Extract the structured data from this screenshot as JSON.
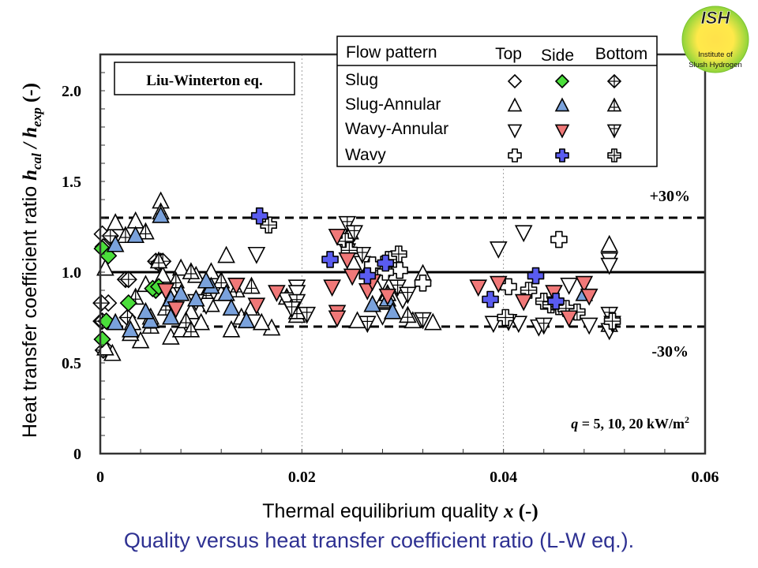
{
  "caption": "Quality versus heat transfer coefficient ratio (L-W eq.).",
  "logo": {
    "title": "ISH",
    "line1": "Institute of",
    "line2": "Slush Hydrogen",
    "colors": {
      "outer": "#8fd43a",
      "inner": "#ffe14a",
      "title": "#1a1a1a"
    }
  },
  "colors": {
    "caption": "#2e3192",
    "slug_side": "#4ade3a",
    "slug_annular_side": "#7aa2dc",
    "wavy_annular_side": "#f07878",
    "wavy_side": "#5a5cf0",
    "open": "#ffffff",
    "stroke": "#000000"
  },
  "chart_data": {
    "type": "scatter",
    "title": "Liu-Winterton eq.",
    "xlabel": "Thermal equilibrium quality x (-)",
    "xlabel_main": "Thermal equilibrium quality ",
    "xlabel_var": "x",
    "xlabel_unit": " (-)",
    "ylabel_main": "Heat transfer coefficient ratio ",
    "ylabel_var": "h",
    "ylabel_sub1": "cal",
    "ylabel_sep": " / ",
    "ylabel_sub2": "exp",
    "ylabel_unit": " (-)",
    "xlim": [
      0,
      0.06
    ],
    "ylim": [
      0,
      2.2
    ],
    "x_ticks": [
      {
        "v": 0,
        "label": "0"
      },
      {
        "v": 0.02,
        "label": "0.02"
      },
      {
        "v": 0.04,
        "label": "0.04"
      },
      {
        "v": 0.06,
        "label": "0.06"
      }
    ],
    "y_ticks": [
      {
        "v": 0,
        "label": "0"
      },
      {
        "v": 0.5,
        "label": "0.5"
      },
      {
        "v": 1.0,
        "label": "1.0"
      },
      {
        "v": 1.5,
        "label": "1.5"
      },
      {
        "v": 2.0,
        "label": "2.0"
      }
    ],
    "x_minor_step": 0.004,
    "y_minor_step": 0.1,
    "grid": "vertical dotted at 0.02 and 0.04",
    "reference_lines": [
      {
        "y": 1.0,
        "style": "solid"
      },
      {
        "y": 1.3,
        "style": "dashed",
        "label": "+30%"
      },
      {
        "y": 0.7,
        "style": "dashed",
        "label": "-30%"
      }
    ],
    "annotation": {
      "var": "q",
      "text": " = 5, 10, 20 kW/m",
      "sup": "2"
    },
    "legend": {
      "placement": "top-right",
      "header": "Flow pattern",
      "columns": [
        "Top",
        "Side",
        "Bottom"
      ],
      "rows": [
        "Slug",
        "Slug-Annular",
        "Wavy-Annular",
        "Wavy"
      ]
    },
    "series": [
      {
        "name": "Slug - Top",
        "marker": "diamond",
        "fill": "open",
        "points": [
          [
            0.0002,
            1.21
          ],
          [
            0.0005,
            0.58
          ],
          [
            0.0001,
            0.73
          ],
          [
            0.0008,
            0.83
          ],
          [
            0.0003,
            1.14
          ]
        ]
      },
      {
        "name": "Slug - Side",
        "marker": "diamond",
        "fill": "slug_side",
        "points": [
          [
            0.0002,
            1.13
          ],
          [
            0.0008,
            1.09
          ],
          [
            0.0002,
            0.63
          ],
          [
            0.0006,
            0.73
          ],
          [
            0.0028,
            0.83
          ],
          [
            0.0055,
            0.9
          ],
          [
            0.0052,
            0.91
          ],
          [
            0.0058,
            0.92
          ]
        ]
      },
      {
        "name": "Slug - Bottom",
        "marker": "diamond",
        "fill": "cross",
        "points": [
          [
            0.0001,
            0.83
          ],
          [
            0.0002,
            0.73
          ],
          [
            0.0003,
            0.57
          ],
          [
            0.0025,
            0.96
          ],
          [
            0.0028,
            0.96
          ],
          [
            0.0055,
            1.06
          ],
          [
            0.0058,
            1.05
          ],
          [
            0.006,
            1.06
          ],
          [
            0.0062,
            1.06
          ],
          [
            0.0027,
            0.75
          ],
          [
            0.001,
            1.2
          ]
        ]
      },
      {
        "name": "Slug-Annular - Top",
        "marker": "triangle-up",
        "fill": "open",
        "points": [
          [
            0.0005,
            1.02
          ],
          [
            0.0015,
            1.27
          ],
          [
            0.0035,
            1.28
          ],
          [
            0.006,
            1.39
          ],
          [
            0.0012,
            0.55
          ],
          [
            0.004,
            0.62
          ],
          [
            0.007,
            0.64
          ],
          [
            0.008,
            0.68
          ],
          [
            0.01,
            0.72
          ],
          [
            0.013,
            0.68
          ],
          [
            0.0125,
            1.09
          ],
          [
            0.017,
            0.69
          ],
          [
            0.0005,
            0.58
          ],
          [
            0.003,
            0.66
          ],
          [
            0.005,
            0.75
          ],
          [
            0.009,
            0.78
          ],
          [
            0.011,
            0.82
          ],
          [
            0.014,
            0.75
          ],
          [
            0.016,
            0.72
          ],
          [
            0.0195,
            0.76
          ],
          [
            0.008,
            1.02
          ],
          [
            0.0095,
            0.98
          ],
          [
            0.011,
            1.0
          ],
          [
            0.0062,
            0.98
          ],
          [
            0.0032,
            0.72
          ],
          [
            0.0045,
            0.93
          ],
          [
            0.0072,
            0.88
          ],
          [
            0.012,
            0.88
          ],
          [
            0.015,
            0.8
          ],
          [
            0.0248,
            1.22
          ],
          [
            0.032,
            0.99
          ],
          [
            0.028,
            0.84
          ],
          [
            0.0255,
            0.73
          ],
          [
            0.031,
            0.73
          ],
          [
            0.033,
            0.72
          ],
          [
            0.0505,
            1.15
          ]
        ]
      },
      {
        "name": "Slug-Annular - Side",
        "marker": "triangle-up",
        "fill": "slug_annular_side",
        "points": [
          [
            0.0035,
            1.2
          ],
          [
            0.006,
            1.31
          ],
          [
            0.0015,
            1.15
          ],
          [
            0.003,
            0.68
          ],
          [
            0.005,
            0.73
          ],
          [
            0.007,
            0.85
          ],
          [
            0.008,
            0.88
          ],
          [
            0.0095,
            0.85
          ],
          [
            0.011,
            0.92
          ],
          [
            0.0125,
            0.88
          ],
          [
            0.0045,
            0.78
          ],
          [
            0.007,
            0.75
          ],
          [
            0.0145,
            0.73
          ],
          [
            0.013,
            0.8
          ],
          [
            0.0105,
            0.95
          ],
          [
            0.027,
            0.82
          ],
          [
            0.0285,
            0.85
          ],
          [
            0.029,
            0.78
          ],
          [
            0.048,
            0.88
          ],
          [
            0.0015,
            0.72
          ]
        ]
      },
      {
        "name": "Slug-Annular - Bottom",
        "marker": "triangle-up",
        "fill": "cross",
        "points": [
          [
            0.0025,
            1.2
          ],
          [
            0.0045,
            1.22
          ],
          [
            0.006,
            1.33
          ],
          [
            0.0058,
            1.06
          ],
          [
            0.009,
            1.0
          ],
          [
            0.012,
            0.95
          ],
          [
            0.0075,
            0.95
          ],
          [
            0.0035,
            0.86
          ],
          [
            0.0065,
            0.8
          ],
          [
            0.0085,
            0.73
          ],
          [
            0.0105,
            0.88
          ],
          [
            0.0135,
            0.9
          ],
          [
            0.0195,
            0.78
          ],
          [
            0.0185,
            0.86
          ],
          [
            0.009,
            0.68
          ],
          [
            0.005,
            0.7
          ],
          [
            0.015,
            0.92
          ],
          [
            0.0305,
            0.76
          ],
          [
            0.0285,
            0.88
          ],
          [
            0.0505,
            0.71
          ]
        ]
      },
      {
        "name": "Wavy-Annular - Top",
        "marker": "triangle-down",
        "fill": "open",
        "points": [
          [
            0.0155,
            1.1
          ],
          [
            0.0185,
            0.85
          ],
          [
            0.0195,
            0.92
          ],
          [
            0.0245,
            1.12
          ],
          [
            0.026,
            1.05
          ],
          [
            0.028,
            0.95
          ],
          [
            0.03,
            0.85
          ],
          [
            0.0395,
            1.13
          ],
          [
            0.042,
            1.22
          ],
          [
            0.0465,
            0.93
          ],
          [
            0.0505,
            1.07
          ],
          [
            0.0505,
            1.04
          ],
          [
            0.039,
            0.72
          ],
          [
            0.0415,
            0.72
          ],
          [
            0.0435,
            0.7
          ],
          [
            0.0485,
            0.71
          ],
          [
            0.0505,
            0.68
          ],
          [
            0.0105,
            0.82
          ],
          [
            0.0095,
            0.84
          ],
          [
            0.028,
            0.76
          ],
          [
            0.0195,
            0.89
          ]
        ]
      },
      {
        "name": "Wavy-Annular - Side",
        "marker": "triangle-down",
        "fill": "wavy_annular_side",
        "points": [
          [
            0.0075,
            0.8
          ],
          [
            0.0135,
            0.93
          ],
          [
            0.0175,
            0.89
          ],
          [
            0.0155,
            0.82
          ],
          [
            0.0235,
            1.2
          ],
          [
            0.0245,
            1.07
          ],
          [
            0.023,
            0.92
          ],
          [
            0.0235,
            0.78
          ],
          [
            0.025,
            0.98
          ],
          [
            0.0265,
            0.9
          ],
          [
            0.0285,
            0.87
          ],
          [
            0.027,
            0.95
          ],
          [
            0.0235,
            0.75
          ],
          [
            0.0375,
            0.92
          ],
          [
            0.0395,
            0.94
          ],
          [
            0.042,
            0.84
          ],
          [
            0.045,
            0.89
          ],
          [
            0.0465,
            0.75
          ],
          [
            0.048,
            0.94
          ],
          [
            0.0485,
            0.87
          ],
          [
            0.0065,
            0.9
          ]
        ]
      },
      {
        "name": "Wavy-Annular - Bottom",
        "marker": "triangle-down",
        "fill": "cross",
        "points": [
          [
            0.0245,
            1.27
          ],
          [
            0.0252,
            1.22
          ],
          [
            0.026,
            1.1
          ],
          [
            0.0275,
            1.0
          ],
          [
            0.0295,
            0.92
          ],
          [
            0.0305,
            0.88
          ],
          [
            0.0265,
            0.72
          ],
          [
            0.0195,
            0.84
          ],
          [
            0.019,
            0.8
          ],
          [
            0.0205,
            0.77
          ],
          [
            0.0505,
            0.77
          ],
          [
            0.0508,
            0.72
          ],
          [
            0.032,
            0.74
          ],
          [
            0.0405,
            0.73
          ],
          [
            0.044,
            0.71
          ]
        ]
      },
      {
        "name": "Wavy - Top",
        "marker": "cross",
        "fill": "open",
        "points": [
          [
            0.0455,
            1.18
          ],
          [
            0.0405,
            0.92
          ],
          [
            0.027,
            1.04
          ],
          [
            0.0297,
            1.01
          ],
          [
            0.0283,
            1.0
          ],
          [
            0.032,
            0.94
          ]
        ]
      },
      {
        "name": "Wavy - Side",
        "marker": "cross",
        "fill": "wavy_side",
        "points": [
          [
            0.0158,
            1.31
          ],
          [
            0.0228,
            1.07
          ],
          [
            0.0265,
            0.98
          ],
          [
            0.0283,
            1.05
          ],
          [
            0.0387,
            0.85
          ],
          [
            0.0432,
            0.98
          ],
          [
            0.0452,
            0.84
          ]
        ]
      },
      {
        "name": "Wavy - Bottom",
        "marker": "cross",
        "fill": "cross",
        "points": [
          [
            0.0167,
            1.26
          ],
          [
            0.0243,
            1.17
          ],
          [
            0.0247,
            1.12
          ],
          [
            0.0296,
            1.1
          ],
          [
            0.0286,
            1.07
          ],
          [
            0.0402,
            0.75
          ],
          [
            0.0425,
            0.9
          ],
          [
            0.044,
            0.84
          ],
          [
            0.0447,
            0.82
          ],
          [
            0.0455,
            0.81
          ],
          [
            0.0462,
            0.8
          ],
          [
            0.0473,
            0.78
          ],
          [
            0.0508,
            0.73
          ]
        ]
      }
    ]
  }
}
